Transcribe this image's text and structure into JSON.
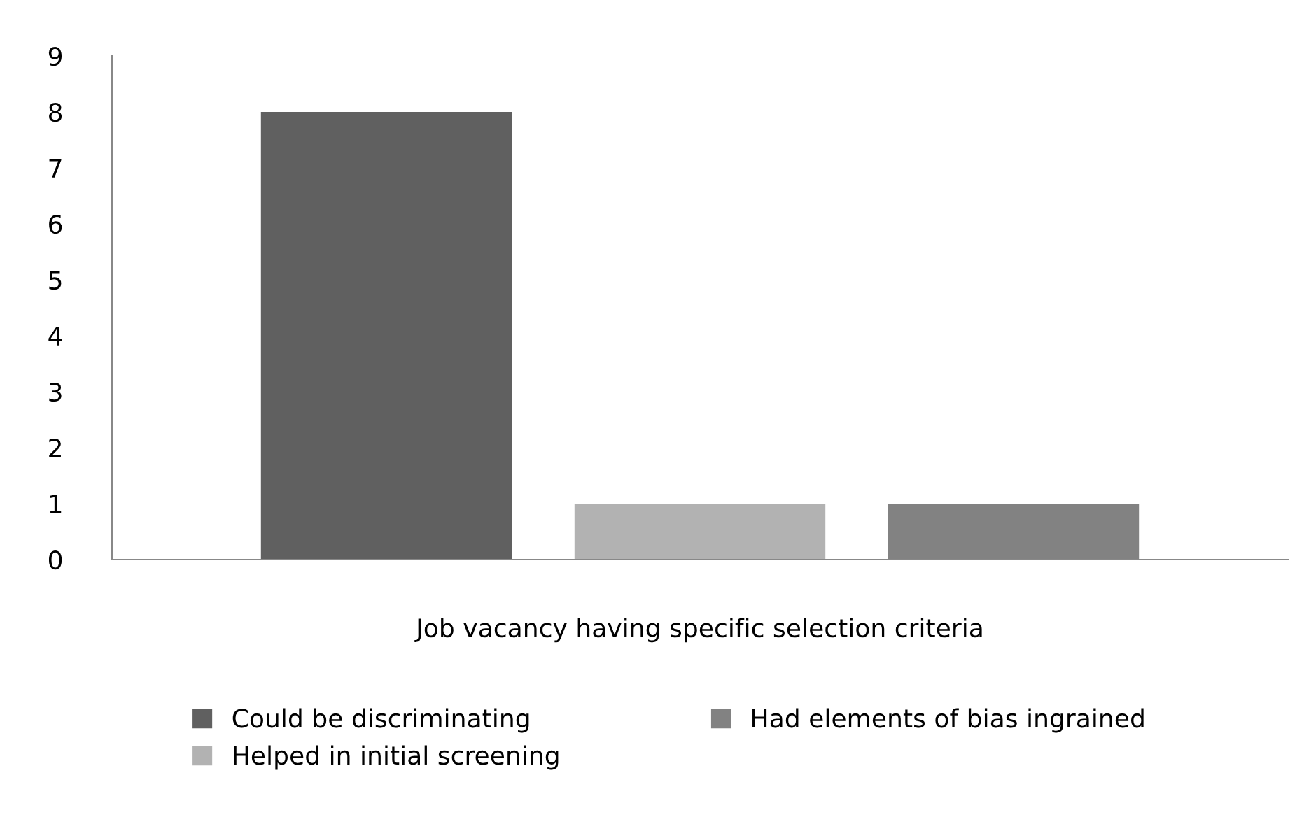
{
  "chart_data": {
    "type": "bar",
    "categories": [
      "Job vacancy having specific selection criteria"
    ],
    "series": [
      {
        "name": "Could be discriminating",
        "color": "#606060",
        "values": [
          8
        ]
      },
      {
        "name": "Helped in initial screening",
        "color": "#b2b2b2",
        "values": [
          1
        ]
      },
      {
        "name": "Had elements of bias ingrained",
        "color": "#828282",
        "values": [
          1
        ]
      }
    ],
    "ylim": [
      0,
      9
    ],
    "yticks": [
      0,
      1,
      2,
      3,
      4,
      5,
      6,
      7,
      8,
      9
    ],
    "grid": false,
    "legend": "bottom"
  }
}
